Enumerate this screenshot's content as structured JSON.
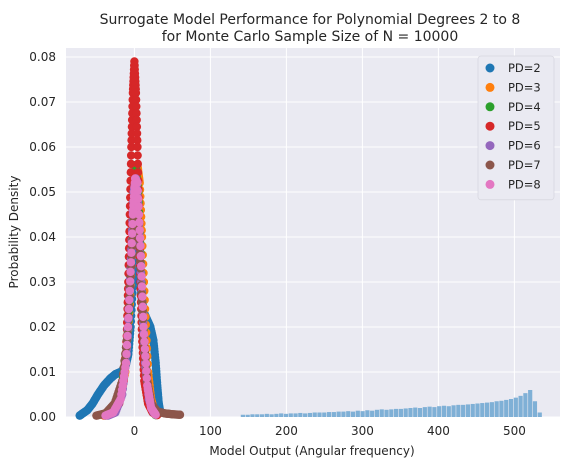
{
  "chart_data": {
    "type": "scatter",
    "title_lines": [
      "Surrogate Model Performance for Polynomial Degrees 2 to 8",
      "for Monte Carlo Sample Size of N = 10000"
    ],
    "xlabel": "Model Output (Angular frequency)",
    "ylabel": "Probability Density",
    "xlim": [
      -90,
      560
    ],
    "ylim": [
      0,
      0.082
    ],
    "xticks": [
      0,
      100,
      200,
      300,
      400,
      500
    ],
    "yticks": [
      0.0,
      0.01,
      0.02,
      0.03,
      0.04,
      0.05,
      0.06,
      0.07,
      0.08
    ],
    "ytick_labels": [
      "0.00",
      "0.01",
      "0.02",
      "0.03",
      "0.04",
      "0.05",
      "0.06",
      "0.07",
      "0.08"
    ],
    "grid": true,
    "legend_position": "top-right",
    "histogram": {
      "color": "#7fb0d6",
      "bin_width": 6.3,
      "bins": [
        {
          "x": 140,
          "y": 0.0005
        },
        {
          "x": 146.3,
          "y": 0.0005
        },
        {
          "x": 152.6,
          "y": 0.0006
        },
        {
          "x": 158.9,
          "y": 0.0006
        },
        {
          "x": 165.2,
          "y": 0.0006
        },
        {
          "x": 171.5,
          "y": 0.0007
        },
        {
          "x": 177.8,
          "y": 0.0006
        },
        {
          "x": 184.1,
          "y": 0.0007
        },
        {
          "x": 190.4,
          "y": 0.0008
        },
        {
          "x": 196.7,
          "y": 0.0007
        },
        {
          "x": 203,
          "y": 0.0008
        },
        {
          "x": 209.3,
          "y": 0.0008
        },
        {
          "x": 215.6,
          "y": 0.0009
        },
        {
          "x": 221.9,
          "y": 0.0008
        },
        {
          "x": 228.2,
          "y": 0.0009
        },
        {
          "x": 234.5,
          "y": 0.001
        },
        {
          "x": 240.8,
          "y": 0.001
        },
        {
          "x": 247.1,
          "y": 0.001
        },
        {
          "x": 253.4,
          "y": 0.0011
        },
        {
          "x": 259.7,
          "y": 0.0011
        },
        {
          "x": 266,
          "y": 0.0012
        },
        {
          "x": 272.3,
          "y": 0.0012
        },
        {
          "x": 278.6,
          "y": 0.0013
        },
        {
          "x": 284.9,
          "y": 0.0012
        },
        {
          "x": 291.2,
          "y": 0.0014
        },
        {
          "x": 297.5,
          "y": 0.0013
        },
        {
          "x": 303.8,
          "y": 0.0015
        },
        {
          "x": 310.1,
          "y": 0.0014
        },
        {
          "x": 316.4,
          "y": 0.0016
        },
        {
          "x": 322.7,
          "y": 0.0017
        },
        {
          "x": 329,
          "y": 0.0016
        },
        {
          "x": 335.3,
          "y": 0.0017
        },
        {
          "x": 341.6,
          "y": 0.0018
        },
        {
          "x": 347.9,
          "y": 0.0018
        },
        {
          "x": 354.2,
          "y": 0.0019
        },
        {
          "x": 360.5,
          "y": 0.002
        },
        {
          "x": 366.8,
          "y": 0.0021
        },
        {
          "x": 373.1,
          "y": 0.002
        },
        {
          "x": 379.4,
          "y": 0.0022
        },
        {
          "x": 385.7,
          "y": 0.0023
        },
        {
          "x": 392,
          "y": 0.0022
        },
        {
          "x": 398.3,
          "y": 0.0024
        },
        {
          "x": 404.6,
          "y": 0.0025
        },
        {
          "x": 410.9,
          "y": 0.0024
        },
        {
          "x": 417.2,
          "y": 0.0026
        },
        {
          "x": 423.5,
          "y": 0.0027
        },
        {
          "x": 429.8,
          "y": 0.0027
        },
        {
          "x": 436.1,
          "y": 0.0028
        },
        {
          "x": 442.4,
          "y": 0.0029
        },
        {
          "x": 448.7,
          "y": 0.003
        },
        {
          "x": 455,
          "y": 0.0031
        },
        {
          "x": 461.3,
          "y": 0.0032
        },
        {
          "x": 467.6,
          "y": 0.0033
        },
        {
          "x": 473.9,
          "y": 0.0035
        },
        {
          "x": 480.2,
          "y": 0.0036
        },
        {
          "x": 486.5,
          "y": 0.0038
        },
        {
          "x": 492.8,
          "y": 0.004
        },
        {
          "x": 499.1,
          "y": 0.0043
        },
        {
          "x": 505.4,
          "y": 0.0047
        },
        {
          "x": 511.7,
          "y": 0.0053
        },
        {
          "x": 518,
          "y": 0.006
        },
        {
          "x": 524.3,
          "y": 0.0035
        },
        {
          "x": 530.6,
          "y": 0.001
        }
      ]
    },
    "series": [
      {
        "name": "PD=2",
        "color": "#1f77b4",
        "points": [
          [
            -72,
            0.0003
          ],
          [
            -68,
            0.0008
          ],
          [
            -62,
            0.0015
          ],
          [
            -55,
            0.003
          ],
          [
            -48,
            0.005
          ],
          [
            -40,
            0.007
          ],
          [
            -32,
            0.0085
          ],
          [
            -25,
            0.0095
          ],
          [
            -18,
            0.01
          ],
          [
            -12,
            0.011
          ],
          [
            -8,
            0.014
          ],
          [
            -5,
            0.02
          ],
          [
            -2,
            0.03
          ],
          [
            0,
            0.04
          ],
          [
            2,
            0.05
          ],
          [
            4,
            0.04
          ],
          [
            6,
            0.032
          ],
          [
            9,
            0.027
          ],
          [
            13,
            0.023
          ],
          [
            17,
            0.0215
          ],
          [
            21,
            0.02
          ],
          [
            25,
            0.017
          ],
          [
            28,
            0.012
          ],
          [
            30,
            0.007
          ],
          [
            32,
            0.003
          ],
          [
            34,
            0.001
          ]
        ]
      },
      {
        "name": "PD=3",
        "color": "#ff7f0e",
        "points": [
          [
            -40,
            0.0003
          ],
          [
            -30,
            0.001
          ],
          [
            -20,
            0.004
          ],
          [
            -12,
            0.01
          ],
          [
            -6,
            0.025
          ],
          [
            -2,
            0.042
          ],
          [
            1,
            0.052
          ],
          [
            4,
            0.056
          ],
          [
            7,
            0.052
          ],
          [
            10,
            0.04
          ],
          [
            14,
            0.024
          ],
          [
            18,
            0.01
          ],
          [
            22,
            0.004
          ],
          [
            26,
            0.0015
          ],
          [
            30,
            0.0005
          ]
        ]
      },
      {
        "name": "PD=4",
        "color": "#2ca02c",
        "points": [
          [
            -38,
            0.0003
          ],
          [
            -28,
            0.001
          ],
          [
            -18,
            0.005
          ],
          [
            -10,
            0.015
          ],
          [
            -5,
            0.032
          ],
          [
            -1,
            0.05
          ],
          [
            2,
            0.056
          ],
          [
            5,
            0.05
          ],
          [
            9,
            0.032
          ],
          [
            13,
            0.015
          ],
          [
            18,
            0.005
          ],
          [
            23,
            0.0015
          ],
          [
            28,
            0.0004
          ]
        ]
      },
      {
        "name": "PD=5",
        "color": "#d62728",
        "points": [
          [
            -40,
            0.0004
          ],
          [
            -30,
            0.001
          ],
          [
            -20,
            0.003
          ],
          [
            -14,
            0.008
          ],
          [
            -10,
            0.018
          ],
          [
            -8,
            0.03
          ],
          [
            -6,
            0.045
          ],
          [
            -4,
            0.06
          ],
          [
            -2,
            0.072
          ],
          [
            0,
            0.079
          ],
          [
            2,
            0.072
          ],
          [
            4,
            0.06
          ],
          [
            6,
            0.045
          ],
          [
            8,
            0.03
          ],
          [
            10,
            0.018
          ],
          [
            13,
            0.008
          ],
          [
            18,
            0.003
          ],
          [
            24,
            0.001
          ],
          [
            30,
            0.0004
          ]
        ]
      },
      {
        "name": "PD=6",
        "color": "#9467bd",
        "points": [
          [
            -35,
            0.0003
          ],
          [
            -25,
            0.001
          ],
          [
            -16,
            0.005
          ],
          [
            -10,
            0.015
          ],
          [
            -5,
            0.033
          ],
          [
            -1,
            0.05
          ],
          [
            2,
            0.053
          ],
          [
            5,
            0.047
          ],
          [
            9,
            0.03
          ],
          [
            14,
            0.012
          ],
          [
            19,
            0.004
          ],
          [
            25,
            0.001
          ]
        ]
      },
      {
        "name": "PD=7",
        "color": "#8c564b",
        "points": [
          [
            -50,
            0.0003
          ],
          [
            -38,
            0.0008
          ],
          [
            -26,
            0.003
          ],
          [
            -16,
            0.008
          ],
          [
            -8,
            0.02
          ],
          [
            -3,
            0.038
          ],
          [
            1,
            0.05
          ],
          [
            4,
            0.046
          ],
          [
            8,
            0.033
          ],
          [
            12,
            0.018
          ],
          [
            17,
            0.008
          ],
          [
            22,
            0.003
          ],
          [
            30,
            0.0012
          ],
          [
            40,
            0.0008
          ],
          [
            50,
            0.0006
          ],
          [
            60,
            0.0005
          ]
        ]
      },
      {
        "name": "PD=8",
        "color": "#e377c2",
        "points": [
          [
            -38,
            0.0003
          ],
          [
            -28,
            0.001
          ],
          [
            -18,
            0.004
          ],
          [
            -11,
            0.012
          ],
          [
            -6,
            0.028
          ],
          [
            -2,
            0.045
          ],
          [
            1,
            0.053
          ],
          [
            4,
            0.052
          ],
          [
            8,
            0.038
          ],
          [
            12,
            0.02
          ],
          [
            17,
            0.007
          ],
          [
            22,
            0.002
          ],
          [
            28,
            0.0005
          ]
        ]
      }
    ]
  }
}
